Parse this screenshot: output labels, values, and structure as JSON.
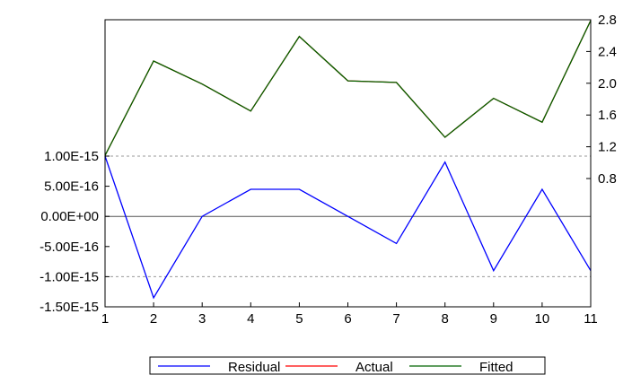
{
  "chart_data": {
    "type": "line",
    "title": "",
    "xlabel": "",
    "ylabel": "",
    "x": [
      1,
      2,
      3,
      4,
      5,
      6,
      7,
      8,
      9,
      10,
      11
    ],
    "x_tick_labels": [
      "1",
      "2",
      "3",
      "4",
      "5",
      "6",
      "7",
      "8",
      "9",
      "10",
      "11"
    ],
    "left_axis": {
      "range": [
        -1.5e-15,
        1e-15
      ],
      "tick_labels": [
        "1.00E-15",
        "5.00E-16",
        "0.00E+00",
        "-5.00E-16",
        "-1.00E-15",
        "-1.50E-15"
      ],
      "tick_values": [
        1e-15,
        5e-16,
        0,
        -5e-16,
        -1e-15,
        -1.5e-15
      ]
    },
    "right_axis": {
      "range": [
        0.4,
        2.8
      ],
      "tick_labels": [
        "2.8",
        "2.4",
        "2.0",
        "1.6",
        "1.2",
        "0.8"
      ],
      "tick_values": [
        2.8,
        2.4,
        2.0,
        1.6,
        1.2,
        0.8
      ]
    },
    "reference_lines": {
      "dashed": [
        1e-15,
        -1e-15
      ],
      "solid": [
        0
      ]
    },
    "series": [
      {
        "name": "Residual",
        "axis": "left",
        "color": "#0000ff",
        "values": [
          1e-15,
          -1.35e-15,
          0.0,
          4.5e-16,
          4.5e-16,
          0.0,
          -4.5e-16,
          9e-16,
          -9e-16,
          4.5e-16,
          -9e-16
        ]
      },
      {
        "name": "Actual",
        "axis": "right",
        "color": "#ff0000",
        "values": [
          1.09,
          2.28,
          1.99,
          1.65,
          2.59,
          2.03,
          2.01,
          1.32,
          1.81,
          1.51,
          2.79
        ]
      },
      {
        "name": "Fitted",
        "axis": "right",
        "color": "#006400",
        "values": [
          1.09,
          2.28,
          1.99,
          1.65,
          2.59,
          2.03,
          2.01,
          1.32,
          1.81,
          1.51,
          2.79
        ]
      }
    ],
    "legend": {
      "position": "bottom"
    },
    "grid": false
  }
}
